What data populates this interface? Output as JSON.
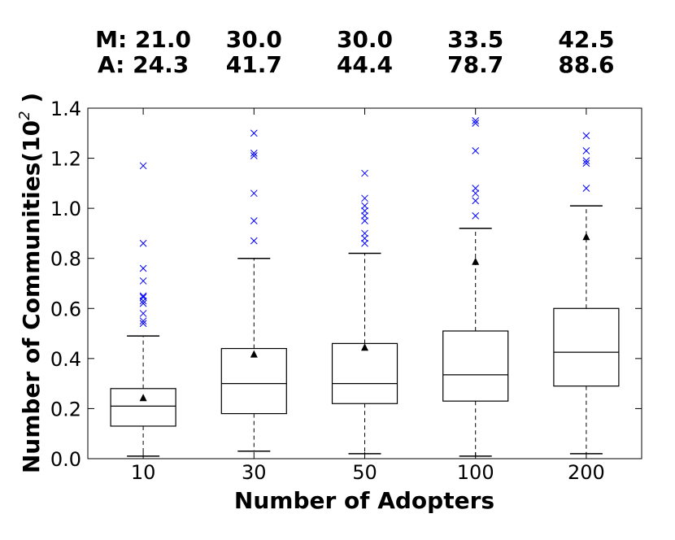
{
  "chart_data": {
    "type": "box",
    "xlabel": "Number of Adopters",
    "ylabel": "Number of Communities(10",
    "ylabel_exponent": "2",
    "ylabel_close": " )",
    "ylim": [
      0.0,
      1.4
    ],
    "yticks": [
      "0.0",
      "0.2",
      "0.4",
      "0.6",
      "0.8",
      "1.0",
      "1.2",
      "1.4"
    ],
    "categories": [
      "10",
      "30",
      "50",
      "100",
      "200"
    ],
    "median_prefix": "M:",
    "mean_prefix": "A:",
    "median_labels": [
      "21.0",
      "30.0",
      "30.0",
      "33.5",
      "42.5"
    ],
    "mean_labels": [
      "24.3",
      "41.7",
      "44.4",
      "78.7",
      "88.6"
    ],
    "boxes": [
      {
        "whisker_low": 0.01,
        "q1": 0.13,
        "median": 0.21,
        "q3": 0.28,
        "whisker_high": 0.49,
        "mean": 0.243,
        "outliers": [
          0.54,
          0.55,
          0.58,
          0.62,
          0.63,
          0.645,
          0.65,
          0.71,
          0.76,
          0.86,
          1.17
        ]
      },
      {
        "whisker_low": 0.03,
        "q1": 0.18,
        "median": 0.3,
        "q3": 0.44,
        "whisker_high": 0.8,
        "mean": 0.417,
        "outliers": [
          0.87,
          0.95,
          1.06,
          1.21,
          1.22,
          1.3
        ]
      },
      {
        "whisker_low": 0.02,
        "q1": 0.22,
        "median": 0.3,
        "q3": 0.46,
        "whisker_high": 0.82,
        "mean": 0.444,
        "outliers": [
          0.86,
          0.88,
          0.9,
          0.95,
          0.97,
          0.99,
          1.01,
          1.04,
          1.14
        ]
      },
      {
        "whisker_low": 0.01,
        "q1": 0.23,
        "median": 0.335,
        "q3": 0.51,
        "whisker_high": 0.92,
        "mean": 0.787,
        "outliers": [
          0.97,
          1.03,
          1.06,
          1.08,
          1.23,
          1.34,
          1.35
        ]
      },
      {
        "whisker_low": 0.02,
        "q1": 0.29,
        "median": 0.425,
        "q3": 0.6,
        "whisker_high": 1.01,
        "mean": 0.886,
        "outliers": [
          1.08,
          1.18,
          1.19,
          1.23,
          1.29
        ]
      }
    ],
    "colors": {
      "outlier": "#0000ff",
      "box": "#000000",
      "median": "#000000",
      "mean": "#000000"
    }
  }
}
